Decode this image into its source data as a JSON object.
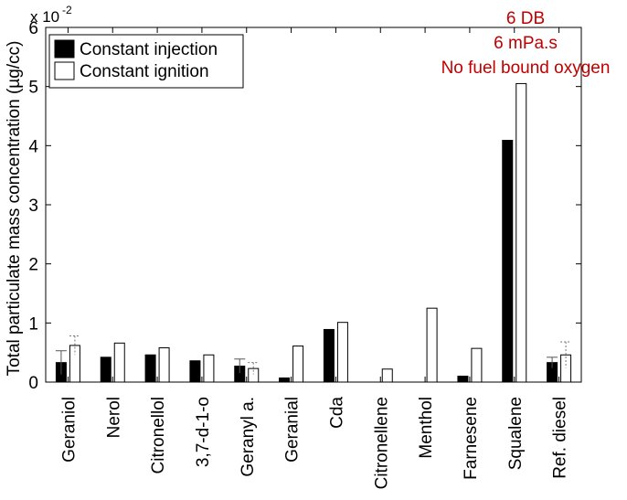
{
  "chart_data": {
    "type": "bar",
    "ylabel": "Total particulate mass concentration (µg/cc)",
    "y_multiplier": "x 10",
    "y_exponent": "-2",
    "ylim": [
      0,
      6
    ],
    "yticks": [
      "0",
      "1",
      "2",
      "3",
      "4",
      "5",
      "6"
    ],
    "categories": [
      "Geraniol",
      "Nerol",
      "Citronellol",
      "3,7-d-1-o",
      "Geranyl a.",
      "Geranial",
      "Cda",
      "Citronellene",
      "Menthol",
      "Farnesene",
      "Squalene",
      "Ref. diesel"
    ],
    "series": [
      {
        "name": "Constant injection",
        "values": [
          0.33,
          0.42,
          0.46,
          0.36,
          0.27,
          0.07,
          0.89,
          0,
          0,
          0.1,
          4.09,
          0.33
        ],
        "error": [
          0.2,
          null,
          null,
          null,
          0.12,
          null,
          null,
          null,
          null,
          null,
          null,
          0.09
        ],
        "fill": "#000000"
      },
      {
        "name": "Constant ignition",
        "values": [
          0.62,
          0.66,
          0.58,
          0.46,
          0.23,
          0.61,
          1.01,
          0.22,
          1.25,
          0.57,
          5.05,
          0.46
        ],
        "error": [
          0.16,
          null,
          null,
          null,
          0.1,
          null,
          null,
          null,
          null,
          null,
          null,
          0.22
        ],
        "fill": "#ffffff"
      }
    ],
    "legend": "top-left",
    "grid": false,
    "annotation": [
      "6 DB",
      "6 mPa.s",
      "No fuel bound oxygen"
    ],
    "annotation_color": "#c00000"
  }
}
